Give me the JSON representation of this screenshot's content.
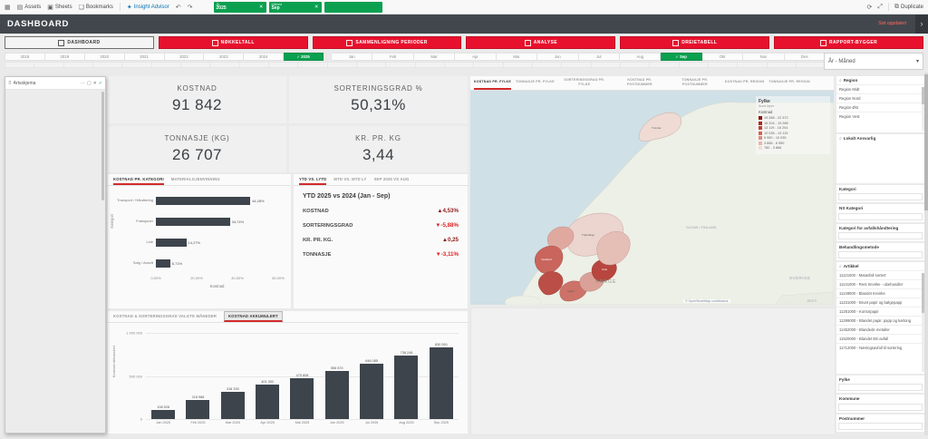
{
  "topbar": {
    "menu_items": [
      {
        "label": "Assets"
      },
      {
        "label": "Sheets"
      },
      {
        "label": "Bookmarks"
      },
      {
        "label": "Insight Advisor"
      }
    ],
    "selections": [
      {
        "field": "År",
        "value": "2025"
      },
      {
        "field": "Måned",
        "value": "Sep"
      }
    ],
    "duplicate_label": "Duplicate"
  },
  "titlebar": {
    "title": "DASHBOARD",
    "note": "Sist oppdatert"
  },
  "nav": [
    {
      "label": "DASHBOARD",
      "active": true
    },
    {
      "label": "NØKKELTALL",
      "active": false
    },
    {
      "label": "SAMMENLIGNING PERIODER",
      "active": false
    },
    {
      "label": "ANALYSE",
      "active": false
    },
    {
      "label": "DREIETABELL",
      "active": false
    },
    {
      "label": "RAPPORT-BYGGER",
      "active": false
    }
  ],
  "filters": {
    "years": {
      "options": [
        "2018",
        "2019",
        "2020",
        "2021",
        "2022",
        "2023",
        "2024",
        "2025"
      ],
      "selected": "2025"
    },
    "months": {
      "options": [
        "Jan",
        "Feb",
        "Mar",
        "Apr",
        "Mai",
        "Jun",
        "Jul",
        "Aug",
        "Sep",
        "Okt",
        "Nov",
        "Des"
      ],
      "selected": "Sep"
    },
    "dimension_dropdown": "År - Måned"
  },
  "left_panel": {
    "title": "Artsskjema"
  },
  "kpis": [
    {
      "label": "KOSTNAD",
      "value": "91 842"
    },
    {
      "label": "SORTERINGSGRAD %",
      "value": "50,31%"
    },
    {
      "label": "TONNASJE (KG)",
      "value": "26 707"
    },
    {
      "label": "KR. PR. KG",
      "value": "3,44"
    }
  ],
  "kategori_panel": {
    "tabs": [
      "KOSTNAD PR. KATEGORI",
      "MATERIALGJENVINNING"
    ],
    "active_tab_index": 0
  },
  "ytd_panel": {
    "tabs": [
      "YTD VS. LYTD",
      "MTD VS. MTD LY",
      "SEP 2025 VS AUG"
    ],
    "active_tab_index": 0,
    "title": "YTD 2025 vs 2024 (Jan - Sep)",
    "rows": [
      {
        "label": "KOSTNAD",
        "value": "4,53%",
        "direction": "up",
        "color": "#8e1b1b"
      },
      {
        "label": "SORTERINGSGRAD",
        "value": "-5,88%",
        "direction": "down",
        "color": "#e02424"
      },
      {
        "label": "KR. PR. KG.",
        "value": "0,25",
        "direction": "up",
        "color": "#8e1b1b"
      },
      {
        "label": "TONNASJE",
        "value": "-3,11%",
        "direction": "down",
        "color": "#e02424"
      }
    ]
  },
  "map_panel": {
    "tabs": [
      "KOSTNAD PR. FYLKE",
      "TONNASJE PR. FYLKE",
      "SORTERINGSGRAD PR. FYLKE",
      "KOSTNAD PR. POSTNUMMER",
      "TONNASJE PR. POSTNUMMER",
      "KOSTNAD PR. REGION",
      "TONNASJE PR. REGION"
    ],
    "active_tab_index": 0,
    "legend": {
      "title": "Fylke",
      "layer": "Area layer",
      "measure": "Kostnad",
      "classes": [
        {
          "range": "19 288 - 22 372",
          "color": "#8c1713"
        },
        {
          "range": "16 204 - 19 288",
          "color": "#a62a22"
        },
        {
          "range": "13 119 - 16 204",
          "color": "#bf4238"
        },
        {
          "range": "10 035 - 13 119",
          "color": "#d26156"
        },
        {
          "range": "6 950 - 10 035",
          "color": "#e28a7e"
        },
        {
          "range": "3 866 - 6 950",
          "color": "#eeb3aa"
        },
        {
          "range": "782 - 3 866",
          "color": "#f7dcd6"
        }
      ]
    },
    "country_labels": [
      "NORGE",
      "SVERIGE",
      "SUOMI / FINLAND",
      "EESTI"
    ],
    "attribution": "© OpenStreetMap contributors"
  },
  "bottom_panel": {
    "tabs": [
      "KOSTNAD & SORTERINGSGRAD VALGTE MÅNEDER",
      "KOSTNAD AKKUMULERT"
    ],
    "active_tab_index": 1
  },
  "sidebar": {
    "region": {
      "title": "Region",
      "items": [
        "Region Midt",
        "Region Nord",
        "Region Øst",
        "Region Vest"
      ]
    },
    "lokalt": {
      "title": "Lokalt Ansvarlig"
    },
    "collapsed": [
      {
        "title": "Kategori"
      },
      {
        "title": "NS Kategori"
      },
      {
        "title": "Kategori for avfallshåndtering"
      },
      {
        "title": "Behandlingsmetode"
      }
    ],
    "artikkel": {
      "title": "Artikkel",
      "items": [
        "11121000 - Matavfall sortert",
        "11141000 - Rent trevirke - ubehandlet",
        "11149000 - Blandet trevirke",
        "11231000 - Brunt papir og bølgepapp",
        "11251000 - Kontorpapir",
        "11299000 - Blandet papir, papp og kartong",
        "11452000 - Blandede metaller",
        "11520000 - Blandet EE-avfall",
        "11712000 - Næringsavfall til sortering"
      ]
    },
    "bottom": [
      {
        "title": "Fylke"
      },
      {
        "title": "Kommune"
      },
      {
        "title": "Postnummer"
      }
    ]
  },
  "chart_data": [
    {
      "type": "bar",
      "orientation": "horizontal",
      "title": "Kostnad pr. kategori",
      "categories": [
        "Transport / Håndtering",
        "Fraksjoner",
        "Leie",
        "Salg / Avsett"
      ],
      "values": [
        44.28,
        34.74,
        14.27,
        6.71
      ],
      "value_labels": [
        "44,28%",
        "34,74%",
        "14,27%",
        "6,71%"
      ],
      "xlabel": "Kostnad",
      "ylabel": "Kategori",
      "xlim": [
        0,
        60
      ],
      "xticks": [
        "0,00%",
        "20,00%",
        "40,00%",
        "60,00%"
      ]
    },
    {
      "type": "bar",
      "title": "Kostnad akkumulert",
      "categories": [
        "Jan 2025",
        "Feb 2025",
        "Mar 2025",
        "Apr 2025",
        "Mai 2025",
        "Jun 2025",
        "Jul 2025",
        "Aug 2025",
        "Sep 2025"
      ],
      "values": [
        108528,
        218988,
        318330,
        401392,
        475808,
        556874,
        646085,
        738248,
        830090
      ],
      "value_labels": [
        "108 528",
        "218 988",
        "318 330",
        "401 392",
        "475 808",
        "556 874",
        "646 085",
        "738 248",
        "830 090"
      ],
      "xlabel": "",
      "ylabel": "Kostnad akkumulert",
      "ylim": [
        0,
        1000000
      ],
      "yticks": [
        "0",
        "500 000",
        "1 000 000"
      ]
    }
  ]
}
